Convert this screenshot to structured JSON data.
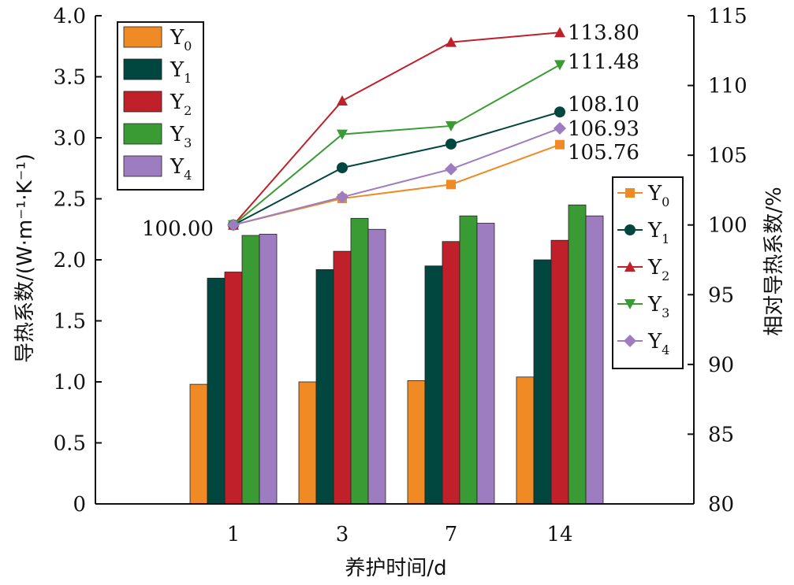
{
  "chart_data": {
    "type": "bar",
    "categories": [
      "1",
      "3",
      "7",
      "14"
    ],
    "xlabel": "养护时间/d",
    "ylabel": "导热系数/(W·m⁻¹·K⁻¹)",
    "y2label": "相对导热系数/%",
    "ylim": [
      0,
      4.0
    ],
    "y2lim": [
      80,
      115
    ],
    "yticks": [
      "0",
      "0.5",
      "1.0",
      "1.5",
      "2.0",
      "2.5",
      "3.0",
      "3.5",
      "4.0"
    ],
    "y2ticks": [
      "80",
      "85",
      "90",
      "95",
      "100",
      "105",
      "110",
      "115"
    ],
    "bar_series": [
      {
        "name": "Y0",
        "color": "#f08a24",
        "values": [
          0.98,
          1.0,
          1.01,
          1.04
        ]
      },
      {
        "name": "Y1",
        "color": "#02473f",
        "values": [
          1.85,
          1.92,
          1.95,
          2.0
        ]
      },
      {
        "name": "Y2",
        "color": "#c0202a",
        "values": [
          1.9,
          2.07,
          2.15,
          2.16
        ]
      },
      {
        "name": "Y3",
        "color": "#3a9b34",
        "values": [
          2.2,
          2.34,
          2.36,
          2.45
        ]
      },
      {
        "name": "Y4",
        "color": "#9e7cc0",
        "values": [
          2.21,
          2.25,
          2.3,
          2.36
        ]
      }
    ],
    "line_series": [
      {
        "name": "Y0",
        "color": "#f08a24",
        "marker": "square",
        "values": [
          100.0,
          101.9,
          102.9,
          105.76
        ]
      },
      {
        "name": "Y1",
        "color": "#02473f",
        "marker": "circle",
        "values": [
          100.0,
          104.1,
          105.8,
          108.1
        ]
      },
      {
        "name": "Y2",
        "color": "#c0202a",
        "marker": "triangle-up",
        "values": [
          100.0,
          108.9,
          113.1,
          113.8
        ]
      },
      {
        "name": "Y3",
        "color": "#3a9b34",
        "marker": "triangle-down",
        "values": [
          100.0,
          106.5,
          107.1,
          111.48
        ]
      },
      {
        "name": "Y4",
        "color": "#9e7cc0",
        "marker": "diamond",
        "values": [
          100.0,
          102.0,
          104.0,
          106.93
        ]
      }
    ],
    "annotations": [
      "100.00",
      "113.80",
      "111.48",
      "108.10",
      "106.93",
      "105.76"
    ],
    "grid": false,
    "bar_legend_position": "top-left",
    "line_legend_position": "right"
  }
}
